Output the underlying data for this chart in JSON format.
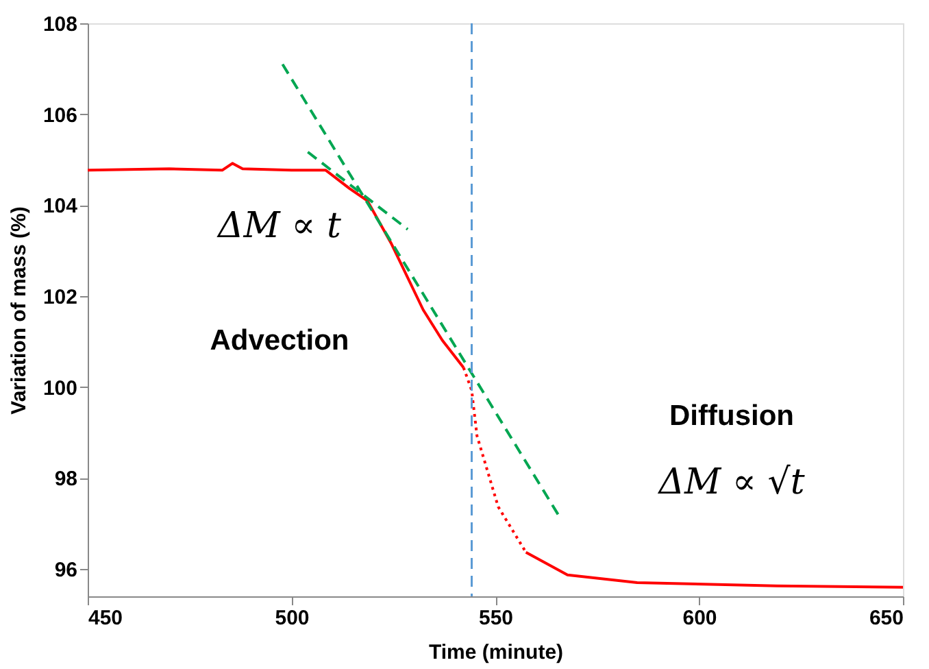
{
  "chart_data": {
    "type": "line",
    "xlabel": "Time (minute)",
    "ylabel": "Variation of mass (%)",
    "xlim": [
      450,
      650
    ],
    "xticks": [
      450,
      500,
      550,
      600,
      650
    ],
    "ylim": [
      95.4,
      108
    ],
    "yticks": [
      96,
      98,
      100,
      102,
      104,
      106,
      108
    ],
    "grid": false,
    "marker": "none",
    "series": [
      {
        "color": "#ff0000",
        "line_style": "solid",
        "x": [
          450,
          470,
          483,
          485.5,
          488,
          500,
          508.4,
          514.2,
          518.6,
          524.4,
          532.3,
          537,
          542.2
        ],
        "values": [
          104.77,
          104.8,
          104.77,
          104.92,
          104.8,
          104.77,
          104.77,
          104.37,
          104.1,
          103.17,
          101.7,
          101.03,
          100.43
        ]
      },
      {
        "color": "#ff0000",
        "line_style": "dotted",
        "x": [
          542.2,
          544.2,
          545.5,
          550.7,
          557.5
        ],
        "values": [
          100.43,
          99.93,
          98.93,
          97.37,
          96.37
        ]
      },
      {
        "color": "#ff0000",
        "line_style": "solid",
        "x": [
          557.5,
          567.7,
          584.8,
          619,
          650
        ],
        "values": [
          96.37,
          95.87,
          95.7,
          95.63,
          95.6
        ]
      },
      {
        "color": "#00a651",
        "line_style": "dashed",
        "x": [
          497.8,
          565.4
        ],
        "values": [
          107.1,
          97.2
        ]
      },
      {
        "color": "#00a651",
        "line_style": "dashed",
        "x": [
          504,
          528.5
        ],
        "values": [
          105.17,
          103.47
        ]
      }
    ],
    "ref_lines": [
      {
        "axis": "x",
        "value": 544.2,
        "color": "#5b9bd5",
        "line_style": "dashed"
      }
    ],
    "annotations": [
      "ΔM ∝ t",
      "Advection",
      "Diffusion",
      "ΔM ∝ √t"
    ]
  }
}
